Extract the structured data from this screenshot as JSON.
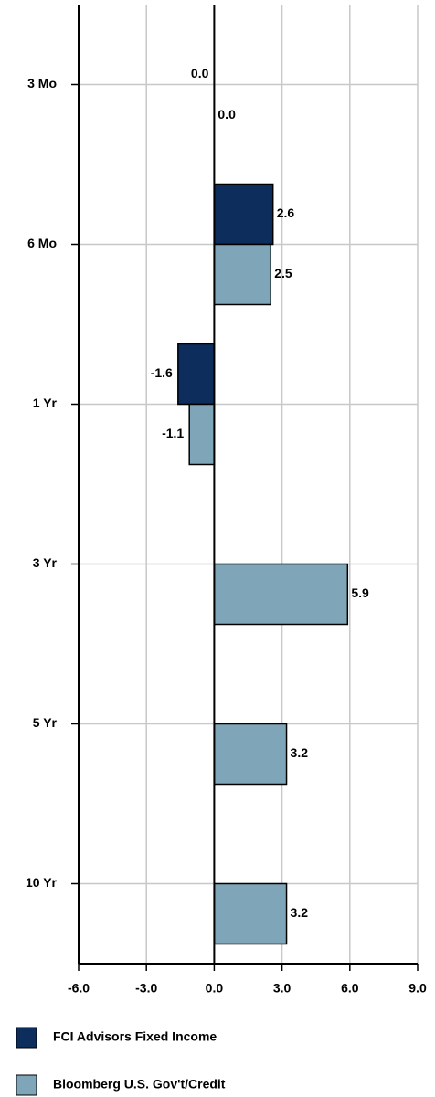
{
  "chart_data": {
    "type": "bar",
    "orientation": "horizontal",
    "categories": [
      "3 Mo",
      "6 Mo",
      "1 Yr",
      "3 Yr",
      "5 Yr",
      "10 Yr"
    ],
    "series": [
      {
        "name": "FCI Advisors Fixed Income",
        "color": "#0d2d5c",
        "values": [
          0.0,
          2.6,
          -1.6,
          null,
          null,
          null
        ],
        "value_labels": [
          "0.0",
          "2.6",
          "-1.6",
          null,
          null,
          null
        ]
      },
      {
        "name": "Bloomberg U.S. Gov't/Credit",
        "color": "#7fa6b8",
        "values": [
          0.0,
          2.5,
          -1.1,
          5.9,
          3.2,
          3.2
        ],
        "value_labels": [
          "0.0",
          "2.5",
          "-1.1",
          "5.9",
          "3.2",
          "3.2"
        ]
      }
    ],
    "xlim": [
      -6,
      9
    ],
    "xticks": [
      {
        "value": -6,
        "label": "-6.0"
      },
      {
        "value": -3,
        "label": "-3.0"
      },
      {
        "value": 0,
        "label": "0.0"
      },
      {
        "value": 3,
        "label": "3.0"
      },
      {
        "value": 6,
        "label": "6.0"
      },
      {
        "value": 9,
        "label": "9.0"
      }
    ],
    "grid": true,
    "legend": "bottom"
  }
}
